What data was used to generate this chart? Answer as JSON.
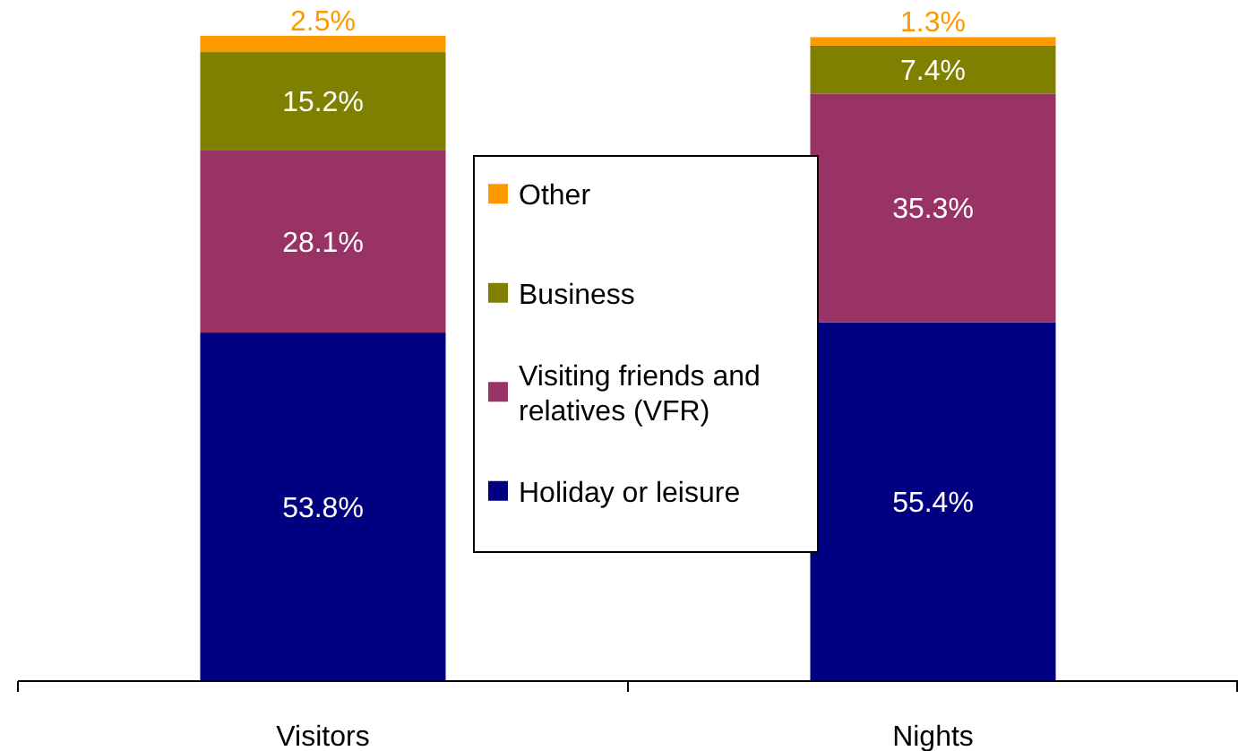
{
  "chart_data": {
    "type": "bar",
    "stacked": true,
    "categories": [
      "Visitors",
      "Nights"
    ],
    "series": [
      {
        "name": "Holiday or leisure",
        "color": "#000080",
        "values": [
          53.8,
          55.4
        ],
        "value_labels": [
          "53.8%",
          "55.4%"
        ]
      },
      {
        "name": "Visiting friends and relatives (VFR)",
        "color": "#993366",
        "values": [
          28.1,
          35.3
        ],
        "value_labels": [
          "28.1%",
          "35.3%"
        ]
      },
      {
        "name": "Business",
        "color": "#808000",
        "values": [
          15.2,
          7.4
        ],
        "value_labels": [
          "15.2%",
          "7.4%"
        ]
      },
      {
        "name": "Other",
        "color": "#ff9900",
        "values": [
          2.5,
          1.3
        ],
        "value_labels": [
          "2.5%",
          "1.3%"
        ]
      }
    ],
    "legend": "center"
  }
}
